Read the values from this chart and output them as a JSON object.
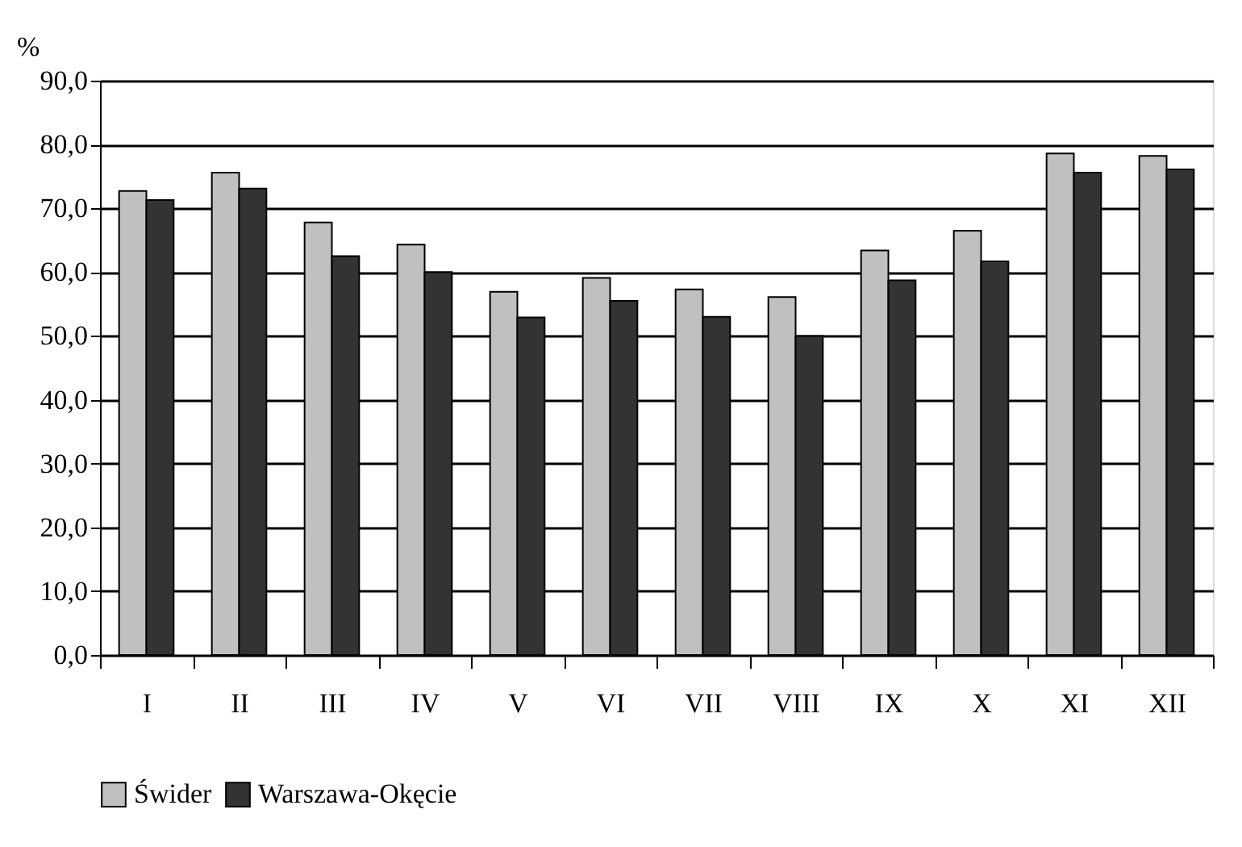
{
  "chart_data": {
    "type": "bar",
    "ylabel": "%",
    "categories": [
      "I",
      "II",
      "III",
      "IV",
      "V",
      "VI",
      "VII",
      "VIII",
      "IX",
      "X",
      "XI",
      "XII"
    ],
    "series": [
      {
        "name": "Świder",
        "color": "#c0c0c0",
        "values": [
          72.7,
          75.6,
          67.8,
          64.3,
          56.9,
          59.1,
          57.3,
          56.1,
          63.4,
          66.5,
          78.6,
          78.2
        ]
      },
      {
        "name": "Warszawa-Okęcie",
        "color": "#333333",
        "values": [
          71.3,
          73.1,
          62.5,
          60.0,
          52.9,
          55.5,
          53.0,
          50.0,
          58.7,
          61.7,
          75.6,
          76.1
        ]
      }
    ],
    "ylim": [
      0,
      90
    ],
    "yticks": [
      {
        "value": 0,
        "label": "0,0"
      },
      {
        "value": 10,
        "label": "10,0"
      },
      {
        "value": 20,
        "label": "20,0"
      },
      {
        "value": 30,
        "label": "30,0"
      },
      {
        "value": 40,
        "label": "40,0"
      },
      {
        "value": 50,
        "label": "50,0"
      },
      {
        "value": 60,
        "label": "60,0"
      },
      {
        "value": 70,
        "label": "70,0"
      },
      {
        "value": 80,
        "label": "80,0"
      },
      {
        "value": 90,
        "label": "90,0"
      }
    ],
    "grid": "y",
    "legend": "bottom"
  }
}
